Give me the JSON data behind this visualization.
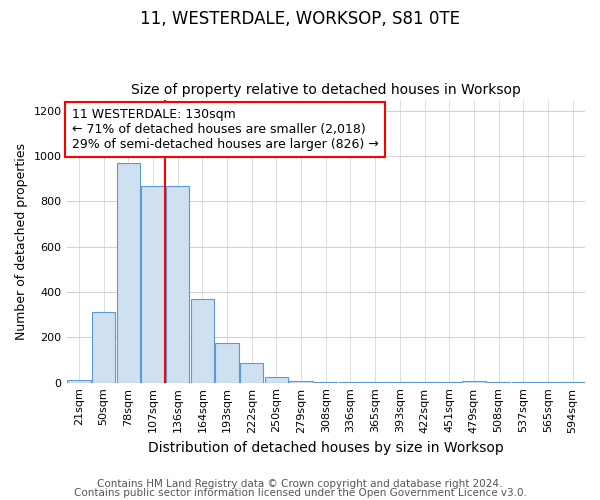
{
  "title1": "11, WESTERDALE, WORKSOP, S81 0TE",
  "title2": "Size of property relative to detached houses in Worksop",
  "xlabel": "Distribution of detached houses by size in Worksop",
  "ylabel": "Number of detached properties",
  "categories": [
    "21sqm",
    "50sqm",
    "78sqm",
    "107sqm",
    "136sqm",
    "164sqm",
    "193sqm",
    "222sqm",
    "250sqm",
    "279sqm",
    "308sqm",
    "336sqm",
    "365sqm",
    "393sqm",
    "422sqm",
    "451sqm",
    "479sqm",
    "508sqm",
    "537sqm",
    "565sqm",
    "594sqm"
  ],
  "values": [
    10,
    310,
    970,
    870,
    870,
    370,
    175,
    85,
    25,
    8,
    2,
    2,
    2,
    2,
    2,
    2,
    8,
    2,
    2,
    2,
    2
  ],
  "bar_color": "#cfe0f0",
  "bar_edge_color": "#5b9bd5",
  "red_line_x": 3.5,
  "red_line_color": "red",
  "annotation_text": "11 WESTERDALE: 130sqm\n← 71% of detached houses are smaller (2,018)\n29% of semi-detached houses are larger (826) →",
  "annotation_box_color": "white",
  "annotation_box_edge": "red",
  "ylim": [
    0,
    1250
  ],
  "yticks": [
    0,
    200,
    400,
    600,
    800,
    1000,
    1200
  ],
  "footnote1": "Contains HM Land Registry data © Crown copyright and database right 2024.",
  "footnote2": "Contains public sector information licensed under the Open Government Licence v3.0.",
  "title1_fontsize": 12,
  "title2_fontsize": 10,
  "xlabel_fontsize": 10,
  "ylabel_fontsize": 9,
  "tick_fontsize": 8,
  "footnote_fontsize": 7.5,
  "annotation_fontsize": 9
}
